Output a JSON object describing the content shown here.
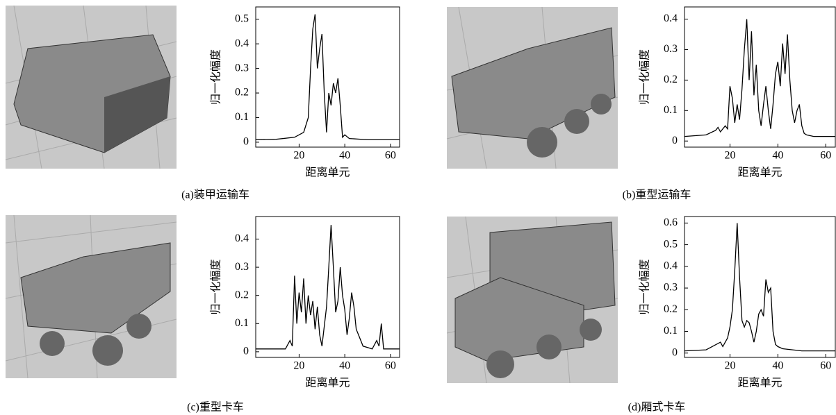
{
  "chart_data": [
    {
      "type": "line",
      "title": "(a)装甲运输车",
      "xlabel": "距离单元",
      "ylabel": "归一化幅度",
      "color": "#000000",
      "xlim": [
        1,
        64
      ],
      "xticks": [
        20,
        40,
        60
      ],
      "ylim": [
        -0.02,
        0.55
      ],
      "yticks": [
        0,
        0.1,
        0.2,
        0.3,
        0.4,
        0.5
      ],
      "x": [
        1,
        10,
        18,
        22,
        24,
        25,
        26,
        27,
        28,
        29,
        30,
        31,
        32,
        33,
        34,
        35,
        36,
        37,
        38,
        39,
        40,
        42,
        50,
        64
      ],
      "values": [
        0.01,
        0.012,
        0.02,
        0.04,
        0.1,
        0.3,
        0.46,
        0.52,
        0.3,
        0.38,
        0.44,
        0.2,
        0.04,
        0.2,
        0.15,
        0.24,
        0.2,
        0.26,
        0.15,
        0.02,
        0.03,
        0.015,
        0.01,
        0.01
      ]
    },
    {
      "type": "line",
      "title": "(b)重型运输车",
      "xlabel": "距离单元",
      "ylabel": "归一化幅度",
      "color": "#000000",
      "xlim": [
        1,
        64
      ],
      "xticks": [
        20,
        40,
        60
      ],
      "ylim": [
        -0.02,
        0.44
      ],
      "yticks": [
        0,
        0.1,
        0.2,
        0.3,
        0.4
      ],
      "x": [
        1,
        10,
        14,
        15,
        16,
        18,
        19,
        20,
        21,
        22,
        23,
        24,
        25,
        26,
        27,
        28,
        29,
        30,
        31,
        32,
        33,
        34,
        35,
        36,
        37,
        38,
        39,
        40,
        41,
        42,
        43,
        44,
        45,
        46,
        47,
        48,
        49,
        50,
        51,
        52,
        55,
        64
      ],
      "values": [
        0.015,
        0.02,
        0.035,
        0.045,
        0.03,
        0.05,
        0.04,
        0.18,
        0.14,
        0.06,
        0.12,
        0.07,
        0.17,
        0.3,
        0.4,
        0.2,
        0.36,
        0.15,
        0.25,
        0.1,
        0.05,
        0.12,
        0.18,
        0.1,
        0.04,
        0.12,
        0.22,
        0.26,
        0.18,
        0.32,
        0.22,
        0.35,
        0.2,
        0.1,
        0.06,
        0.1,
        0.12,
        0.05,
        0.025,
        0.02,
        0.015,
        0.015
      ]
    },
    {
      "type": "line",
      "title": "(c)重型卡车",
      "xlabel": "距离单元",
      "ylabel": "归一化幅度",
      "color": "#000000",
      "xlim": [
        1,
        64
      ],
      "xticks": [
        20,
        40,
        60
      ],
      "ylim": [
        -0.02,
        0.48
      ],
      "yticks": [
        0,
        0.1,
        0.2,
        0.3,
        0.4
      ],
      "x": [
        1,
        14,
        16,
        17,
        18,
        19,
        20,
        21,
        22,
        23,
        24,
        25,
        26,
        27,
        28,
        29,
        30,
        32,
        33,
        34,
        35,
        36,
        37,
        38,
        39,
        40,
        41,
        42,
        43,
        44,
        45,
        46,
        48,
        50,
        52,
        54,
        55,
        56,
        57,
        64
      ],
      "values": [
        0.01,
        0.01,
        0.04,
        0.02,
        0.27,
        0.1,
        0.21,
        0.14,
        0.26,
        0.1,
        0.2,
        0.13,
        0.18,
        0.08,
        0.16,
        0.06,
        0.02,
        0.16,
        0.3,
        0.45,
        0.3,
        0.14,
        0.18,
        0.3,
        0.2,
        0.15,
        0.06,
        0.12,
        0.21,
        0.16,
        0.08,
        0.06,
        0.02,
        0.015,
        0.01,
        0.04,
        0.02,
        0.1,
        0.01,
        0.01
      ]
    },
    {
      "type": "line",
      "title": "(d)厢式卡车",
      "xlabel": "距离单元",
      "ylabel": "归一化幅度",
      "color": "#000000",
      "xlim": [
        1,
        64
      ],
      "xticks": [
        20,
        40,
        60
      ],
      "ylim": [
        -0.02,
        0.63
      ],
      "yticks": [
        0,
        0.1,
        0.2,
        0.3,
        0.4,
        0.5,
        0.6
      ],
      "x": [
        1,
        10,
        16,
        17,
        18,
        19,
        20,
        21,
        22,
        23,
        24,
        25,
        26,
        27,
        28,
        29,
        30,
        31,
        32,
        33,
        34,
        35,
        36,
        37,
        38,
        39,
        40,
        42,
        50,
        64
      ],
      "values": [
        0.01,
        0.015,
        0.05,
        0.03,
        0.05,
        0.07,
        0.12,
        0.2,
        0.38,
        0.6,
        0.35,
        0.15,
        0.12,
        0.15,
        0.14,
        0.1,
        0.05,
        0.1,
        0.18,
        0.2,
        0.17,
        0.34,
        0.28,
        0.3,
        0.1,
        0.04,
        0.03,
        0.02,
        0.01,
        0.01
      ]
    }
  ]
}
